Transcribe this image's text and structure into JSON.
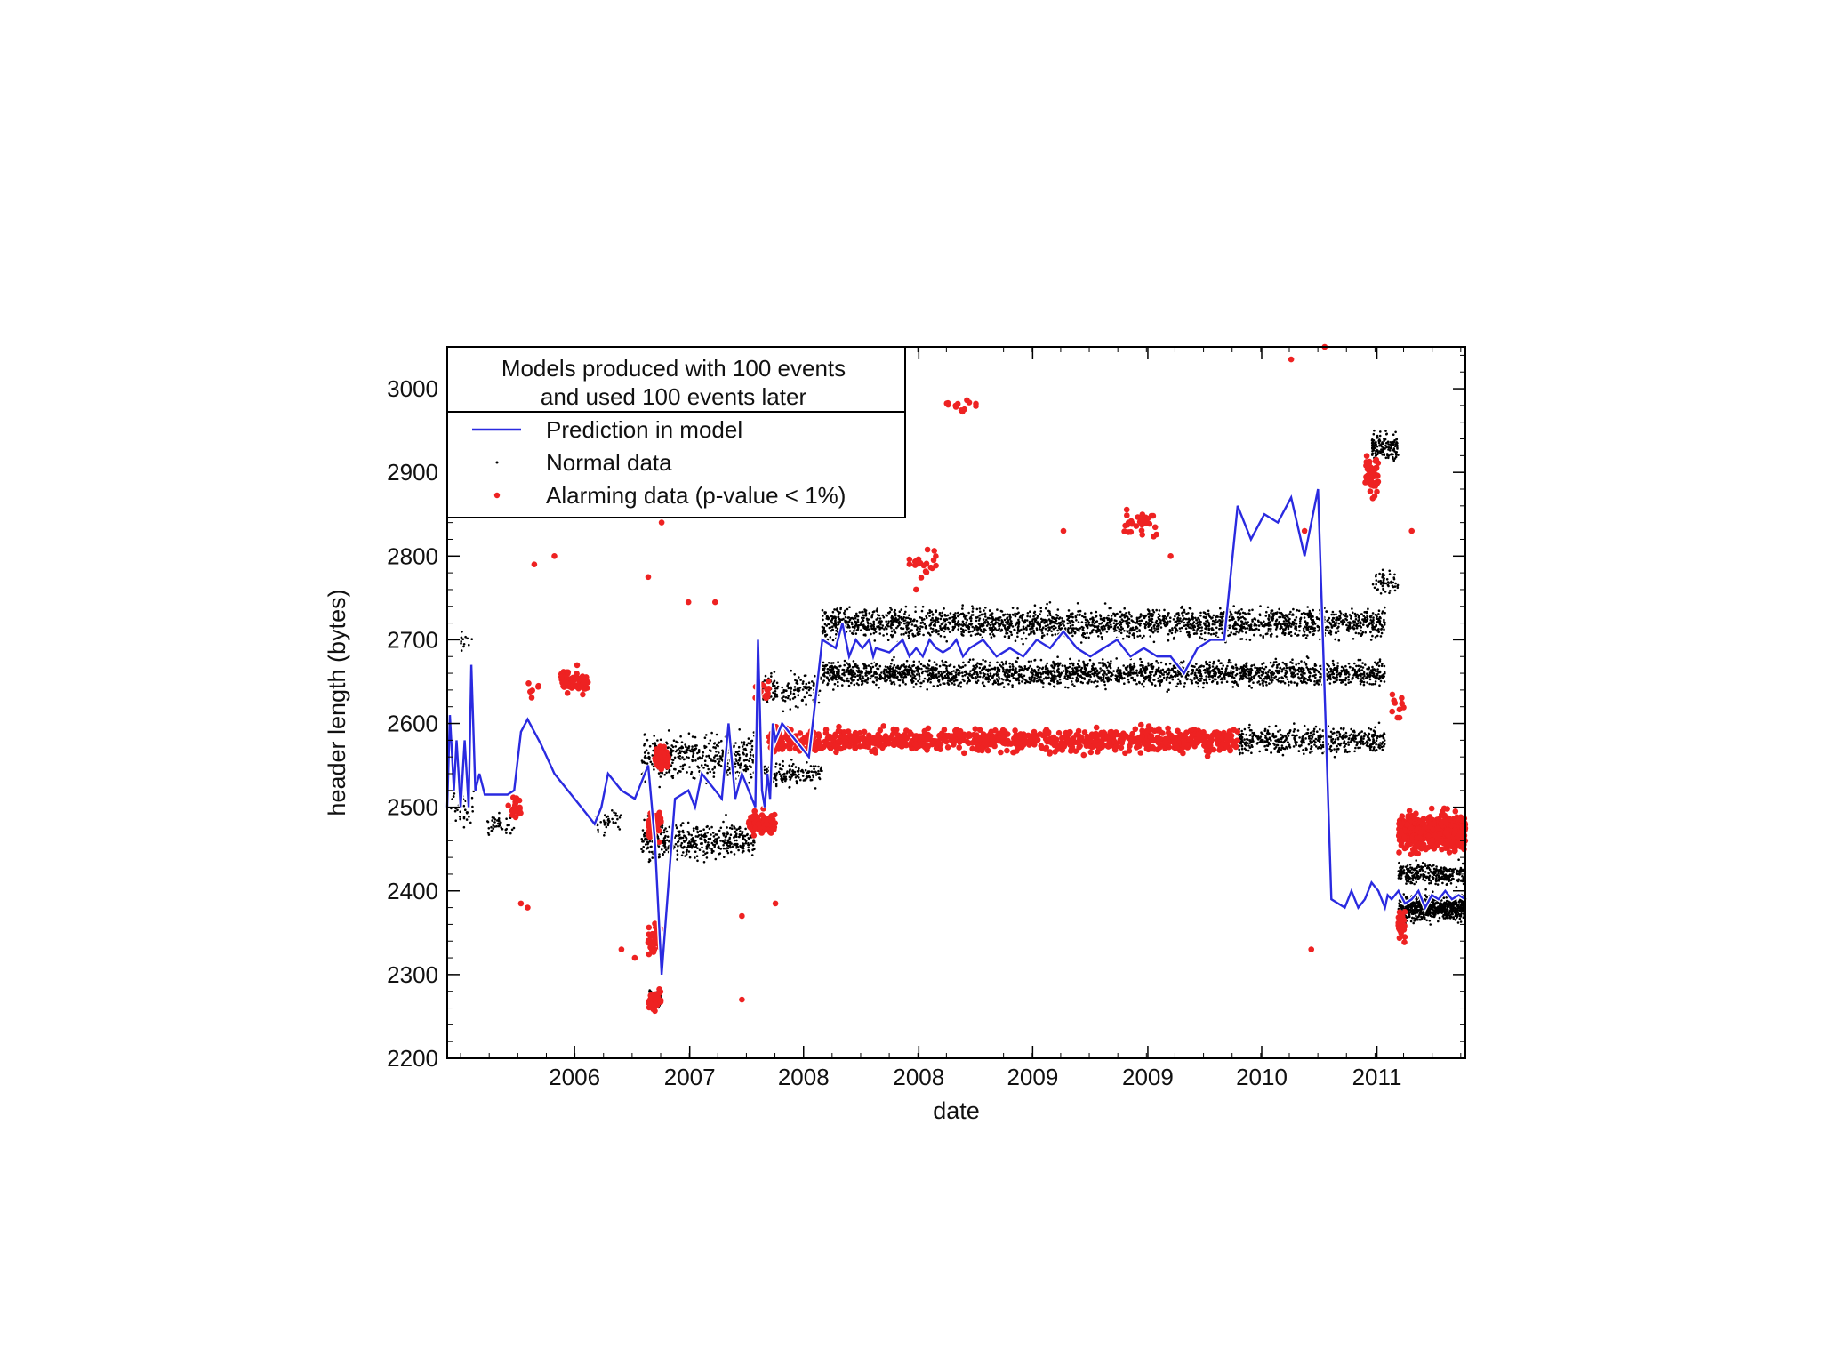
{
  "chart_data": {
    "type": "scatter",
    "title_lines": [
      "Models produced with 100 events",
      "and used 100 events later"
    ],
    "xlabel": "date",
    "ylabel": "header length (bytes)",
    "ylim": [
      2200,
      3050
    ],
    "x_tick_labels": [
      "2006",
      "2007",
      "2008",
      "2008",
      "2009",
      "2009",
      "2010",
      "2011"
    ],
    "y_ticks": [
      2200,
      2300,
      2400,
      2500,
      2600,
      2700,
      2800,
      2900,
      3000
    ],
    "grid": false,
    "legend_position": "top-left",
    "series": [
      {
        "name": "Prediction in model",
        "kind": "line",
        "color": "#2a2ae0",
        "x": [
          0.0,
          0.02,
          0.05,
          0.07,
          0.1,
          0.13,
          0.16,
          0.18,
          0.21,
          0.24,
          0.28,
          0.31,
          0.35,
          0.4,
          0.45,
          0.5,
          0.55,
          0.6,
          0.7,
          0.8,
          0.9,
          1.0,
          1.1,
          1.15,
          1.2,
          1.3,
          1.4,
          1.5,
          1.55,
          1.6,
          1.7,
          1.8,
          1.85,
          1.9,
          2.0,
          2.05,
          2.1,
          2.15,
          2.2,
          2.25,
          2.3,
          2.32,
          2.35,
          2.37,
          2.39,
          2.41,
          2.43,
          2.45,
          2.5,
          2.6,
          2.7,
          2.8,
          2.9,
          2.95,
          3.0,
          3.05,
          3.1,
          3.15,
          3.18,
          3.2,
          3.3,
          3.4,
          3.45,
          3.5,
          3.55,
          3.6,
          3.65,
          3.7,
          3.75,
          3.8,
          3.85,
          3.9,
          4.0,
          4.1,
          4.2,
          4.3,
          4.4,
          4.5,
          4.6,
          4.7,
          4.8,
          4.9,
          5.0,
          5.1,
          5.2,
          5.3,
          5.4,
          5.5,
          5.6,
          5.7,
          5.8,
          5.9,
          6.0,
          6.1,
          6.2,
          6.3,
          6.4,
          6.5,
          6.6,
          6.7,
          6.75,
          6.8,
          6.85,
          6.9,
          6.95,
          7.0,
          7.02,
          7.05,
          7.1,
          7.15,
          7.2,
          7.25,
          7.3,
          7.35,
          7.4,
          7.45,
          7.5,
          7.55,
          7.6
        ],
        "y": [
          2500,
          2610,
          2520,
          2580,
          2500,
          2580,
          2500,
          2670,
          2520,
          2540,
          2515,
          2515,
          2515,
          2515,
          2515,
          2520,
          2590,
          2605,
          2575,
          2540,
          2520,
          2500,
          2480,
          2500,
          2540,
          2520,
          2510,
          2550,
          2460,
          2300,
          2510,
          2520,
          2500,
          2540,
          2520,
          2510,
          2600,
          2510,
          2540,
          2520,
          2500,
          2700,
          2520,
          2500,
          2540,
          2510,
          2600,
          2580,
          2600,
          2580,
          2560,
          2700,
          2690,
          2720,
          2680,
          2700,
          2690,
          2700,
          2680,
          2690,
          2685,
          2700,
          2680,
          2690,
          2680,
          2700,
          2690,
          2685,
          2690,
          2700,
          2680,
          2690,
          2700,
          2680,
          2690,
          2680,
          2700,
          2690,
          2710,
          2690,
          2680,
          2690,
          2700,
          2680,
          2690,
          2680,
          2680,
          2660,
          2690,
          2700,
          2700,
          2860,
          2820,
          2850,
          2840,
          2870,
          2800,
          2880,
          2390,
          2380,
          2400,
          2380,
          2390,
          2410,
          2400,
          2380,
          2395,
          2390,
          2400,
          2385,
          2390,
          2400,
          2380,
          2395,
          2390,
          2400,
          2390,
          2395,
          2390
        ]
      },
      {
        "name": "Normal data",
        "kind": "points",
        "color": "#000000"
      },
      {
        "name": "Alarming data (p-value < 1%)",
        "kind": "points",
        "color": "#ee2222"
      }
    ]
  }
}
